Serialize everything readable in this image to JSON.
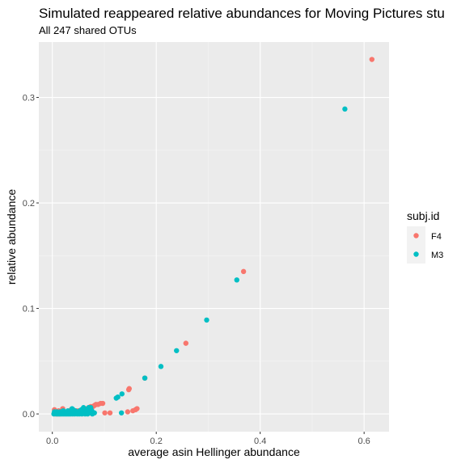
{
  "chart_data": {
    "type": "scatter",
    "title": "Simulated reappeared relative abundances for Moving Pictures stu",
    "subtitle": "All 247 shared OTUs",
    "xlabel": "average asin Hellinger abundance",
    "ylabel": "relative abundance",
    "xlim": [
      -0.026,
      0.648
    ],
    "ylim": [
      -0.0168,
      0.3525
    ],
    "x_ticks": [
      0.0,
      0.2,
      0.4,
      0.6
    ],
    "x_tick_labels": [
      "0.0",
      "0.2",
      "0.4",
      "0.6"
    ],
    "y_ticks": [
      0.0,
      0.1,
      0.2,
      0.3
    ],
    "y_tick_labels": [
      "0.0",
      "0.1",
      "0.2",
      "0.3"
    ],
    "grid": true,
    "legend": {
      "title": "subj.id",
      "placement": "right"
    },
    "series": [
      {
        "name": "F4",
        "color": "#F8766D",
        "points": [
          [
            0.615,
            0.336
          ],
          [
            0.368,
            0.135
          ],
          [
            0.257,
            0.067
          ],
          [
            0.178,
            0.034
          ],
          [
            0.148,
            0.024
          ],
          [
            0.147,
            0.023
          ],
          [
            0.097,
            0.01
          ],
          [
            0.093,
            0.01
          ],
          [
            0.088,
            0.009
          ],
          [
            0.084,
            0.009
          ],
          [
            0.081,
            0.008
          ],
          [
            0.078,
            0.007
          ],
          [
            0.074,
            0.007
          ],
          [
            0.07,
            0.006
          ],
          [
            0.066,
            0.005
          ],
          [
            0.062,
            0.004
          ],
          [
            0.058,
            0.004
          ],
          [
            0.054,
            0.003
          ],
          [
            0.05,
            0.003
          ],
          [
            0.046,
            0.003
          ],
          [
            0.042,
            0.002
          ],
          [
            0.038,
            0.002
          ],
          [
            0.034,
            0.002
          ],
          [
            0.03,
            0.001
          ],
          [
            0.026,
            0.001
          ],
          [
            0.022,
            0.001
          ],
          [
            0.018,
            0.001
          ],
          [
            0.014,
            0.0
          ],
          [
            0.01,
            0.0
          ],
          [
            0.006,
            0.0
          ],
          [
            0.004,
            0.004
          ],
          [
            0.012,
            0.003
          ],
          [
            0.02,
            0.005
          ],
          [
            0.028,
            0.002
          ],
          [
            0.036,
            0.004
          ],
          [
            0.045,
            0.001
          ],
          [
            0.053,
            0.002
          ],
          [
            0.062,
            0.001
          ],
          [
            0.07,
            0.003
          ],
          [
            0.101,
            0.001
          ],
          [
            0.111,
            0.001
          ],
          [
            0.145,
            0.002
          ],
          [
            0.155,
            0.003
          ],
          [
            0.16,
            0.004
          ],
          [
            0.163,
            0.005
          ]
        ]
      },
      {
        "name": "M3",
        "color": "#00BFC4",
        "points": [
          [
            0.563,
            0.289
          ],
          [
            0.355,
            0.127
          ],
          [
            0.297,
            0.089
          ],
          [
            0.239,
            0.06
          ],
          [
            0.209,
            0.045
          ],
          [
            0.178,
            0.034
          ],
          [
            0.134,
            0.019
          ],
          [
            0.126,
            0.016
          ],
          [
            0.123,
            0.015
          ],
          [
            0.081,
            0.001
          ],
          [
            0.133,
            0.001
          ],
          [
            0.076,
            0.003
          ],
          [
            0.073,
            0.005
          ],
          [
            0.07,
            0.006
          ],
          [
            0.066,
            0.004
          ],
          [
            0.062,
            0.003
          ],
          [
            0.059,
            0.002
          ],
          [
            0.056,
            0.004
          ],
          [
            0.053,
            0.003
          ],
          [
            0.05,
            0.002
          ],
          [
            0.047,
            0.001
          ],
          [
            0.044,
            0.003
          ],
          [
            0.041,
            0.002
          ],
          [
            0.038,
            0.005
          ],
          [
            0.036,
            0.001
          ],
          [
            0.033,
            0.002
          ],
          [
            0.03,
            0.003
          ],
          [
            0.027,
            0.001
          ],
          [
            0.024,
            0.002
          ],
          [
            0.021,
            0.003
          ],
          [
            0.018,
            0.001
          ],
          [
            0.015,
            0.002
          ],
          [
            0.012,
            0.001
          ],
          [
            0.009,
            0.002
          ],
          [
            0.006,
            0.001
          ],
          [
            0.003,
            0.0
          ],
          [
            0.004,
            0.002
          ],
          [
            0.008,
            0.0
          ],
          [
            0.011,
            0.0
          ],
          [
            0.014,
            0.0
          ],
          [
            0.017,
            0.0
          ],
          [
            0.02,
            0.0
          ],
          [
            0.023,
            0.0
          ],
          [
            0.026,
            0.0
          ],
          [
            0.029,
            0.0
          ],
          [
            0.032,
            0.0
          ],
          [
            0.035,
            0.0
          ],
          [
            0.039,
            0.0
          ],
          [
            0.043,
            0.0
          ],
          [
            0.048,
            0.0
          ],
          [
            0.052,
            0.0
          ],
          [
            0.057,
            0.0
          ],
          [
            0.063,
            0.0
          ],
          [
            0.068,
            0.0
          ],
          [
            0.072,
            0.001
          ],
          [
            0.077,
            0.0
          ],
          [
            0.04,
            0.004
          ],
          [
            0.06,
            0.006
          ],
          [
            0.074,
            0.006
          ]
        ]
      }
    ]
  }
}
